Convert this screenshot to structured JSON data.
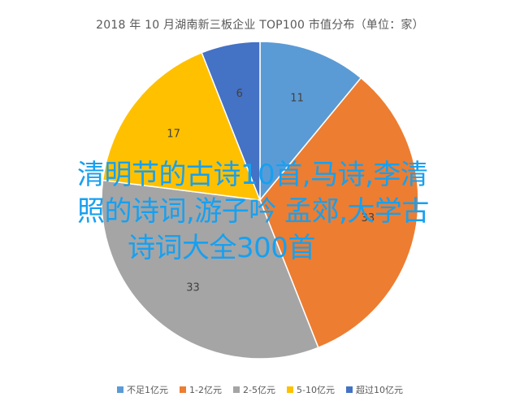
{
  "chart_data": {
    "type": "pie",
    "title": "2018 年 10 月湖南新三板企业 TOP100 市值分布（单位：家）",
    "categories": [
      "不足1亿元",
      "1-2亿元",
      "2-5亿元",
      "5-10亿元",
      "超过10亿元"
    ],
    "values": [
      11,
      33,
      33,
      17,
      6
    ],
    "colors": [
      "#5b9bd5",
      "#ed7d31",
      "#a5a5a5",
      "#ffc000",
      "#4472c4"
    ],
    "legend_position": "bottom"
  },
  "overlay": {
    "line1": "清明节的古诗10首,马诗,李清",
    "line2": "照的诗词,游子吟 孟郊,大学古",
    "line3": "诗词大全300首"
  }
}
